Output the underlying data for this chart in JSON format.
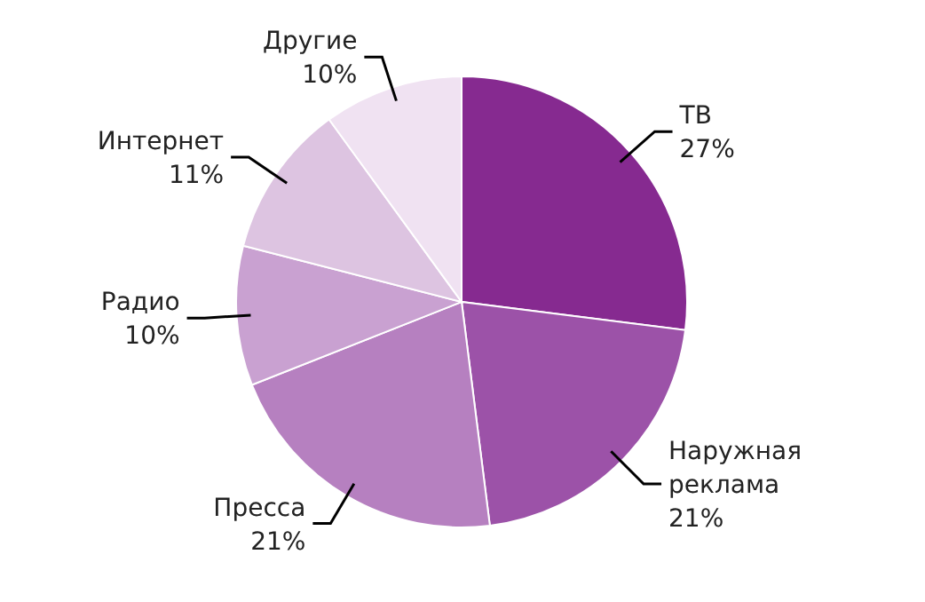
{
  "chart_data": {
    "type": "pie",
    "categories": [
      "ТВ",
      "Наружная реклама",
      "Пресса",
      "Радио",
      "Интернет",
      "Другие"
    ],
    "values": [
      27,
      21,
      21,
      10,
      11,
      10
    ],
    "colors": [
      "#862a90",
      "#9c52a8",
      "#b680c0",
      "#c9a1d1",
      "#ddc4e1",
      "#f0e2f2"
    ],
    "value_labels": [
      "27%",
      "21%",
      "21%",
      "10%",
      "11%",
      "10%"
    ]
  }
}
